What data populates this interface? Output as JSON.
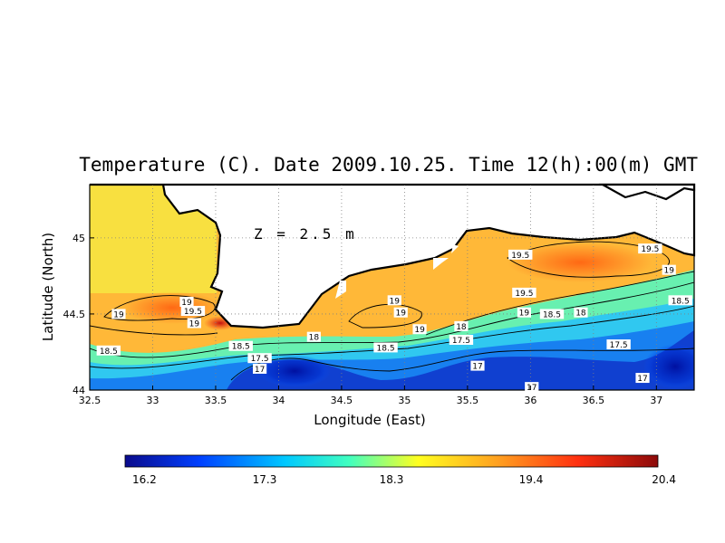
{
  "chart_data": {
    "type": "heatmap",
    "title": "Temperature (C). Date 2009.10.25. Time 12(h):00(m) GMT",
    "xlabel": "Longitude (East)",
    "ylabel": "Latitude (North)",
    "annotation": "Z = 2.5 m",
    "xlim": [
      32.5,
      37.3
    ],
    "ylim": [
      44.0,
      45.35
    ],
    "x_ticks": [
      "32.5",
      "33",
      "33.5",
      "34",
      "34.5",
      "35",
      "35.5",
      "36",
      "36.5",
      "37"
    ],
    "y_ticks": [
      "44",
      "44.5",
      "45"
    ],
    "grid": true,
    "colorbar": {
      "min": 16.2,
      "max": 20.4,
      "tick_labels": [
        "16.2",
        "17.3",
        "18.3",
        "19.4",
        "20.4"
      ],
      "colors": [
        "#0a0a8c",
        "#0050ff",
        "#00c8ff",
        "#40ffc0",
        "#ffff20",
        "#ffa020",
        "#ff3010",
        "#8c0a0a"
      ]
    },
    "contour_labels": [
      {
        "text": "19",
        "lon": 32.73,
        "lat": 44.5
      },
      {
        "text": "19",
        "lon": 33.27,
        "lat": 44.58
      },
      {
        "text": "19.5",
        "lon": 33.32,
        "lat": 44.52
      },
      {
        "text": "19",
        "lon": 33.33,
        "lat": 44.44
      },
      {
        "text": "18.5",
        "lon": 32.65,
        "lat": 44.26
      },
      {
        "text": "18.5",
        "lon": 33.7,
        "lat": 44.29
      },
      {
        "text": "17.5",
        "lon": 33.85,
        "lat": 44.21
      },
      {
        "text": "17",
        "lon": 33.85,
        "lat": 44.14
      },
      {
        "text": "18",
        "lon": 34.28,
        "lat": 44.35
      },
      {
        "text": "19",
        "lon": 34.92,
        "lat": 44.59
      },
      {
        "text": "19",
        "lon": 34.97,
        "lat": 44.51
      },
      {
        "text": "19",
        "lon": 35.12,
        "lat": 44.4
      },
      {
        "text": "18.5",
        "lon": 34.85,
        "lat": 44.28
      },
      {
        "text": "18",
        "lon": 35.45,
        "lat": 44.42
      },
      {
        "text": "17.5",
        "lon": 35.45,
        "lat": 44.33
      },
      {
        "text": "17",
        "lon": 35.58,
        "lat": 44.16
      },
      {
        "text": "19.5",
        "lon": 35.92,
        "lat": 44.89
      },
      {
        "text": "19.5",
        "lon": 35.95,
        "lat": 44.64
      },
      {
        "text": "19",
        "lon": 35.95,
        "lat": 44.51
      },
      {
        "text": "18.5",
        "lon": 36.17,
        "lat": 44.5
      },
      {
        "text": "18",
        "lon": 36.4,
        "lat": 44.51
      },
      {
        "text": "17.5",
        "lon": 36.7,
        "lat": 44.3
      },
      {
        "text": "17",
        "lon": 36.01,
        "lat": 44.02
      },
      {
        "text": "17",
        "lon": 36.89,
        "lat": 44.08
      },
      {
        "text": "19.5",
        "lon": 36.95,
        "lat": 44.93
      },
      {
        "text": "19",
        "lon": 37.1,
        "lat": 44.79
      },
      {
        "text": "18.5",
        "lon": 37.19,
        "lat": 44.59
      }
    ]
  }
}
